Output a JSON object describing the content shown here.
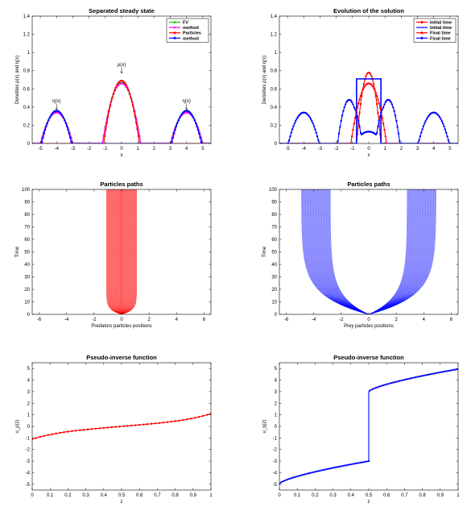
{
  "chart_data": [
    {
      "id": "p1",
      "type": "line",
      "title": "Separated steady state",
      "xlabel": "x",
      "ylabel": "Densities ρ(x) and η(x)",
      "xlim": [
        -5.5,
        5.5
      ],
      "ylim": [
        0,
        1.4
      ],
      "xticks": [
        -5,
        -4,
        -3,
        -2,
        -1,
        0,
        1,
        2,
        3,
        4,
        5
      ],
      "yticks": [
        0,
        0.2,
        0.4,
        0.6,
        0.8,
        1,
        1.2,
        1.4
      ],
      "legend": "top-right",
      "series": [
        {
          "name": "FV",
          "color": "#00cc00",
          "marker": "triangle",
          "shape": "sum",
          "bumps": [
            {
              "c": 0,
              "w": 1.18,
              "a": 0.67
            },
            {
              "c": -4,
              "w": 1.0,
              "a": 0.35
            },
            {
              "c": 4,
              "w": 1.0,
              "a": 0.35
            }
          ]
        },
        {
          "name": "method",
          "color": "#ff00ff",
          "marker": "triangle",
          "shape": "sum",
          "bumps": [
            {
              "c": 0,
              "w": 1.18,
              "a": 0.66
            },
            {
              "c": -4,
              "w": 1.0,
              "a": 0.34
            },
            {
              "c": 4,
              "w": 1.0,
              "a": 0.34
            }
          ]
        },
        {
          "name": "Particles",
          "color": "#ff0000",
          "marker": "dot",
          "shape": "sum",
          "bumps": [
            {
              "c": 0,
              "w": 1.1,
              "a": 0.69
            }
          ]
        },
        {
          "name": "method",
          "color": "#0000ff",
          "marker": "dot",
          "shape": "sum",
          "bumps": [
            {
              "c": -4,
              "w": 0.92,
              "a": 0.36
            },
            {
              "c": 4,
              "w": 0.92,
              "a": 0.36
            }
          ]
        }
      ],
      "annotations": [
        {
          "text": "ρ(x)",
          "x": 0,
          "y": 0.85
        },
        {
          "text": "η(x)",
          "x": -4,
          "y": 0.45
        },
        {
          "text": "η(x)",
          "x": 4,
          "y": 0.45
        }
      ]
    },
    {
      "id": "p2",
      "type": "line",
      "title": "Evolution of the solution",
      "xlabel": "x",
      "ylabel": "Densities ρ(x) and η(x)",
      "xlim": [
        -5.5,
        5.5
      ],
      "ylim": [
        0,
        1.4
      ],
      "xticks": [
        -5,
        -4,
        -3,
        -2,
        -1,
        0,
        1,
        2,
        3,
        4,
        5
      ],
      "yticks": [
        0,
        0.2,
        0.4,
        0.6,
        0.8,
        1,
        1.2,
        1.4
      ],
      "legend": "top-right",
      "series": [
        {
          "name": "Initial time",
          "color": "#ff0000",
          "marker": "dot",
          "shape": "sum",
          "bumps": [
            {
              "c": 0,
              "w": 0.75,
              "a": 0.78
            }
          ]
        },
        {
          "name": "Initial time",
          "color": "#0000ff",
          "marker": "none",
          "shape": "box",
          "x0": -0.75,
          "x1": 0.75,
          "h": 0.71
        },
        {
          "name": "Final time",
          "color": "#ff0000",
          "marker": "dot",
          "shape": "sum",
          "bumps": [
            {
              "c": 0,
              "w": 1.1,
              "a": 0.66
            }
          ]
        },
        {
          "name": "Final time",
          "color": "#0000ff",
          "marker": "dot",
          "shape": "sum",
          "bumps": [
            {
              "c": -4,
              "w": 0.95,
              "a": 0.34
            },
            {
              "c": 4,
              "w": 0.95,
              "a": 0.34
            },
            {
              "c": -1.2,
              "w": 0.72,
              "a": 0.48
            },
            {
              "c": 1.2,
              "w": 0.72,
              "a": 0.48
            },
            {
              "c": 0,
              "w": 0.9,
              "a": 0.13
            }
          ]
        }
      ]
    },
    {
      "id": "p3",
      "type": "line",
      "title": "Particles paths",
      "xlabel": "Predators particles positions",
      "ylabel": "Time",
      "xlim": [
        -6.5,
        6.5
      ],
      "ylim": [
        0,
        100
      ],
      "xticks": [
        -6,
        -4,
        -2,
        0,
        2,
        4,
        6
      ],
      "yticks": [
        0,
        10,
        20,
        30,
        40,
        50,
        60,
        70,
        80,
        90,
        100
      ],
      "paths": {
        "color": "#ff0000",
        "count": 45,
        "inner": 0.75,
        "outer": 1.1,
        "rate": 0.3
      }
    },
    {
      "id": "p4",
      "type": "line",
      "title": "Particles paths",
      "xlabel": "Prey particles positions",
      "ylabel": "Time",
      "xlim": [
        -6.5,
        6.5
      ],
      "ylim": [
        0,
        100
      ],
      "xticks": [
        -6,
        -4,
        -2,
        0,
        2,
        4,
        6
      ],
      "yticks": [
        0,
        10,
        20,
        30,
        40,
        50,
        60,
        70,
        80,
        90,
        100
      ],
      "paths": {
        "color": "#0000ff",
        "count": 55,
        "inner": 0.1,
        "outer": 4.9,
        "innerFinal": 2.8,
        "rate": 0.07
      }
    },
    {
      "id": "p5",
      "type": "line",
      "title": "Pseudo-inverse function",
      "xlabel": "z",
      "ylabel": "u_ρ(z)",
      "xlim": [
        0,
        1
      ],
      "ylim": [
        -5.5,
        5.5
      ],
      "xticks": [
        0,
        0.1,
        0.2,
        0.3,
        0.4,
        0.5,
        0.6,
        0.7,
        0.8,
        0.9,
        1
      ],
      "yticks": [
        -5,
        -4,
        -3,
        -2,
        -1,
        0,
        1,
        2,
        3,
        4,
        5
      ],
      "series": [
        {
          "color": "#ff0000",
          "marker": "dot",
          "shape": "segments",
          "segments": [
            {
              "z0": 0,
              "z1": 1,
              "u0": -1.1,
              "u1": 1.1,
              "sing": true
            }
          ]
        }
      ]
    },
    {
      "id": "p6",
      "type": "line",
      "title": "Pseudo-inverse function",
      "xlabel": "z",
      "ylabel": "u_η(z)",
      "xlim": [
        0,
        1
      ],
      "ylim": [
        -5.5,
        5.5
      ],
      "xticks": [
        0,
        0.1,
        0.2,
        0.3,
        0.4,
        0.5,
        0.6,
        0.7,
        0.8,
        0.9,
        1
      ],
      "yticks": [
        -5,
        -4,
        -3,
        -2,
        -1,
        0,
        1,
        2,
        3,
        4,
        5
      ],
      "series": [
        {
          "color": "#0000ff",
          "marker": "dot",
          "shape": "segments",
          "segments": [
            {
              "z0": 0,
              "z1": 0.5,
              "u0": -4.95,
              "u1": -3.0,
              "sing": false
            },
            {
              "z0": 0.5,
              "z1": 1,
              "u0": 3.0,
              "u1": 4.95,
              "sing": false
            }
          ]
        }
      ]
    }
  ]
}
